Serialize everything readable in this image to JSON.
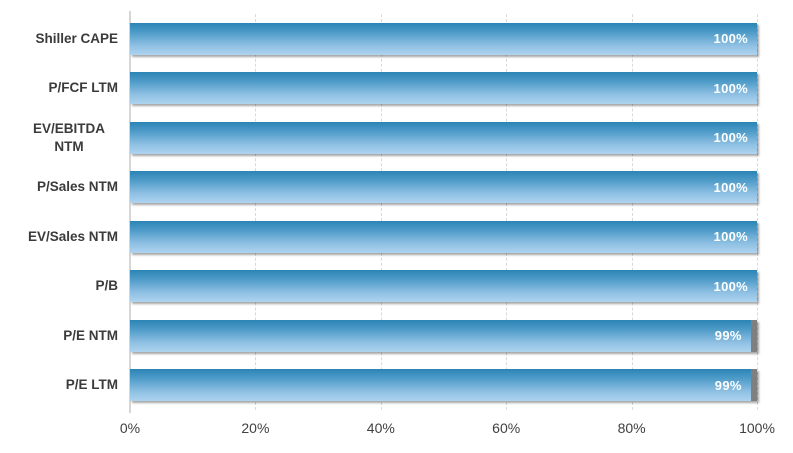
{
  "chart_data": {
    "type": "bar",
    "orientation": "horizontal",
    "title": "",
    "xlabel": "",
    "ylabel": "",
    "categories": [
      "Shiller CAPE",
      "P/FCF LTM",
      "EV/EBITDA NTM",
      "P/Sales NTM",
      "EV/Sales NTM",
      "P/B",
      "P/E NTM",
      "P/E LTM"
    ],
    "series": [
      {
        "name": "value-pct",
        "values": [
          100,
          100,
          100,
          100,
          100,
          100,
          99,
          99
        ]
      },
      {
        "name": "remainder-pct",
        "values": [
          0,
          0,
          0,
          0,
          0,
          0,
          1,
          1
        ]
      }
    ],
    "data_labels": [
      "100%",
      "100%",
      "100%",
      "100%",
      "100%",
      "100%",
      "99%",
      "99%"
    ],
    "x_ticks": [
      "0%",
      "20%",
      "40%",
      "60%",
      "80%",
      "100%"
    ],
    "x_tick_values": [
      0,
      20,
      40,
      60,
      80,
      100
    ],
    "xlim": [
      0,
      100
    ],
    "grid": "vertical-dashed",
    "legend": "none"
  },
  "colors": {
    "bar_gradient_top": "#2b84b5",
    "bar_gradient_bottom": "#aed3ef",
    "remainder": "#7f7f7f",
    "gridline": "#d9d9d9",
    "axis_line": "#d6d6d6",
    "tick_label": "#404040",
    "category_label": "#3b3b3b",
    "value_label": "#ffffff",
    "background": "#ffffff"
  }
}
